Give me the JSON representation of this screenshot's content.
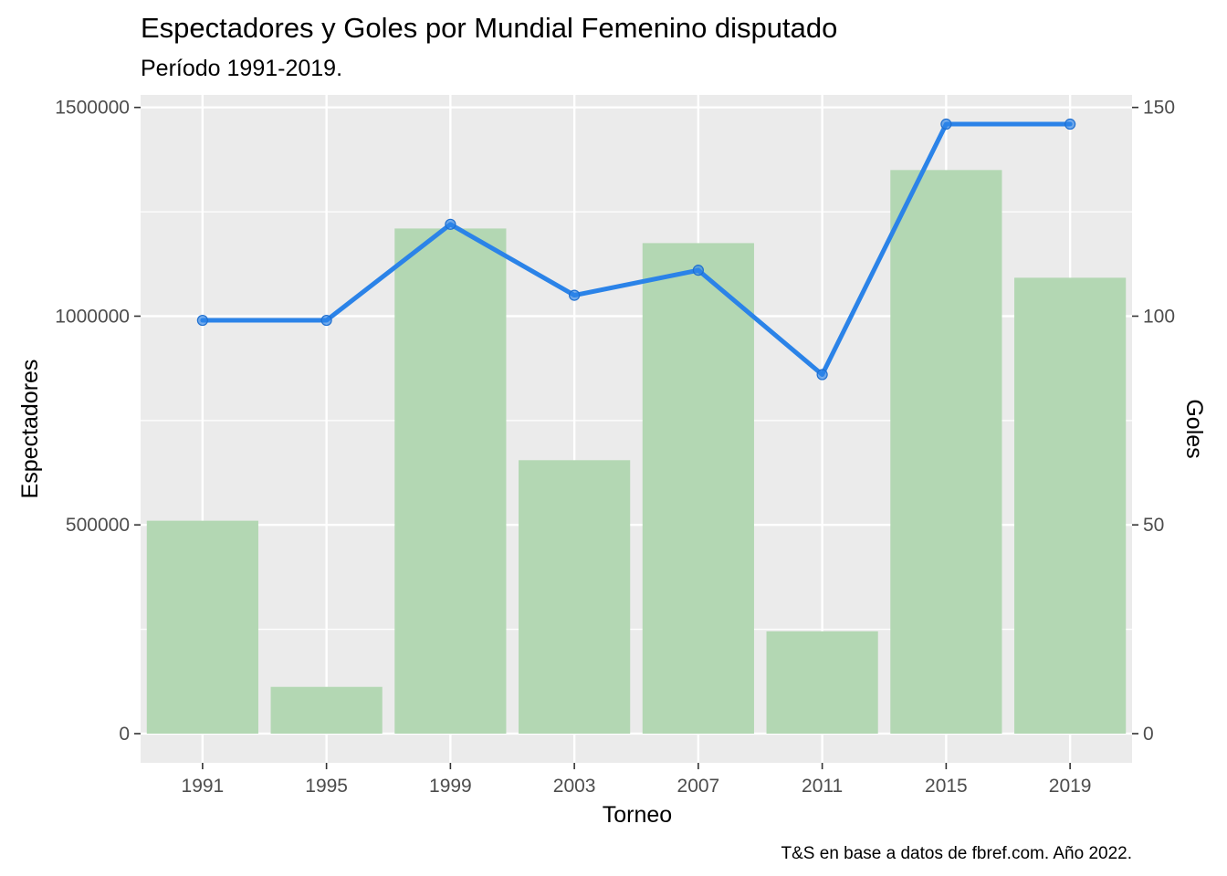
{
  "chart_data": {
    "type": "bar",
    "title": "Espectadores y Goles por Mundial Femenino disputado",
    "subtitle": "Período 1991-2019.",
    "caption": "T&S en base a datos de fbref.com. Año 2022.",
    "xlabel": "Torneo",
    "ylabel": "Espectadores",
    "y2label": "Goles",
    "categories": [
      "1991",
      "1995",
      "1999",
      "2003",
      "2007",
      "2011",
      "2015",
      "2019"
    ],
    "series": [
      {
        "type": "bar",
        "axis": "left",
        "values": [
          510000,
          112000,
          1210000,
          655000,
          1175000,
          245000,
          1350000,
          1092000
        ],
        "color": "#b3d7b3"
      },
      {
        "type": "line",
        "axis": "right",
        "values": [
          99,
          99,
          122,
          105,
          111,
          86,
          146,
          146
        ],
        "color": "#2b83e8"
      }
    ],
    "ylim": [
      -70000,
      1530000
    ],
    "y2lim": [
      -7,
      153
    ],
    "yticks": [
      0,
      500000,
      1000000,
      1500000
    ],
    "ytick_labels": [
      "0",
      "500000",
      "1000000",
      "1500000"
    ],
    "y2ticks": [
      0,
      50,
      100,
      150
    ],
    "y2tick_labels": [
      "0",
      "50",
      "100",
      "150"
    ],
    "grid": true,
    "panel_color": "#ebebeb",
    "grid_color": "#ffffff"
  }
}
